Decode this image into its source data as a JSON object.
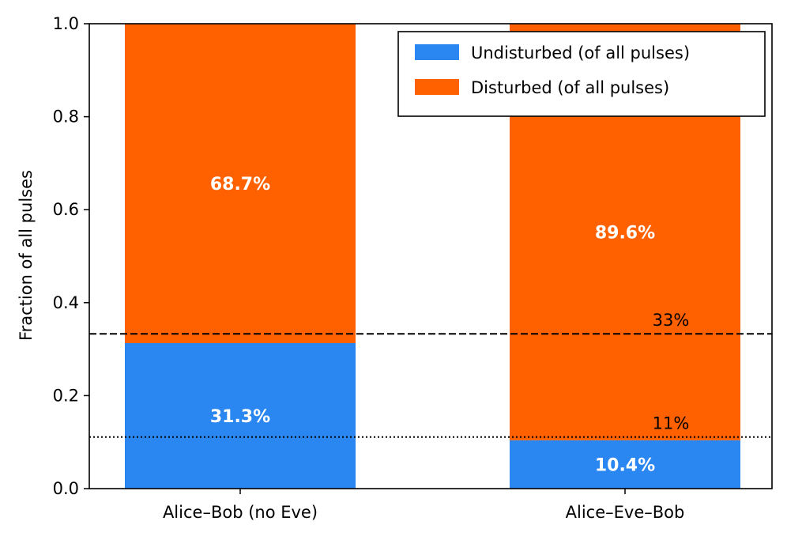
{
  "chart_data": {
    "type": "bar",
    "stacked": true,
    "categories": [
      "Alice–Bob (no Eve)",
      "Alice–Eve–Bob"
    ],
    "series": [
      {
        "name": "Undisturbed (of all pulses)",
        "values": [
          0.313,
          0.104
        ],
        "labels": [
          "31.3%",
          "10.4%"
        ],
        "color": "#2a86f0"
      },
      {
        "name": "Disturbed (of all pulses)",
        "values": [
          0.687,
          0.896
        ],
        "labels": [
          "68.7%",
          "89.6%"
        ],
        "color": "#ff6000"
      }
    ],
    "ylabel": "Fraction of all pulses",
    "ylim": [
      0,
      1.0
    ],
    "yticks": [
      "0.0",
      "0.2",
      "0.4",
      "0.6",
      "0.8",
      "1.0"
    ],
    "reference_lines": [
      {
        "value": 0.333,
        "style": "dashed",
        "label": "33%"
      },
      {
        "value": 0.111,
        "style": "dotted",
        "label": "11%"
      }
    ],
    "legend_position": "top-right",
    "grid": false
  }
}
